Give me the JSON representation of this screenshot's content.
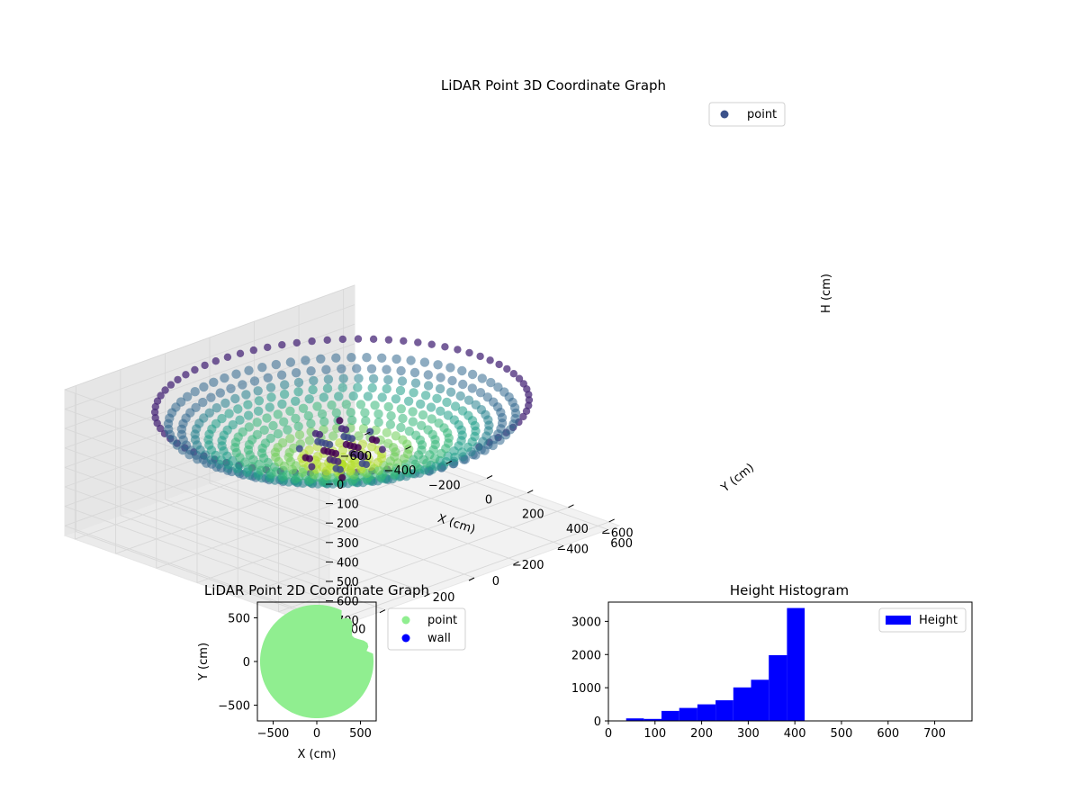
{
  "chart_data": [
    {
      "type": "scatter3d",
      "title": "LiDAR Point 3D Coordinate Graph",
      "xlabel": "X (cm)",
      "ylabel": "Y (cm)",
      "zlabel": "H (cm)",
      "x_ticks": [
        "−600",
        "−400",
        "−200",
        "0",
        "200",
        "400",
        "600"
      ],
      "y_ticks": [
        "−600",
        "−400",
        "−200",
        "0",
        "200",
        "400",
        "600"
      ],
      "z_ticks": [
        "0",
        "100",
        "200",
        "300",
        "400",
        "500",
        "600",
        "700"
      ],
      "xlim": [
        -650,
        650
      ],
      "ylim": [
        -650,
        650
      ],
      "zlim": [
        0,
        750
      ],
      "z_inverted": true,
      "colormap": "viridis",
      "grid": true,
      "legend": [
        {
          "label": "point",
          "color": "#3b528b"
        }
      ],
      "legend_position": "top-right",
      "description_shape": "bowl-shaped point cloud; rim near H≈100–200 cm, floor near H≈400 cm"
    },
    {
      "type": "scatter",
      "title": "LiDAR Point 2D Coordinate Graph",
      "xlabel": "X (cm)",
      "ylabel": "Y (cm)",
      "x_ticks": [
        "−500",
        "0",
        "500"
      ],
      "y_ticks": [
        "500",
        "0",
        "−500"
      ],
      "xlim": [
        -680,
        680
      ],
      "ylim": [
        -680,
        680
      ],
      "legend": [
        {
          "label": "point",
          "color": "#90ee90"
        },
        {
          "label": "wall",
          "color": "#0000ff"
        }
      ],
      "legend_position": "outside-right",
      "series": [
        {
          "name": "point",
          "shape": "filled disc, radius ≈ 630 cm, notched at right edge"
        }
      ]
    },
    {
      "type": "bar",
      "title": "Height Histogram",
      "xlabel": "",
      "ylabel": "",
      "x_ticks": [
        "0",
        "100",
        "200",
        "300",
        "400",
        "500",
        "600",
        "700"
      ],
      "y_ticks": [
        "0",
        "1000",
        "2000",
        "3000"
      ],
      "xlim": [
        0,
        780
      ],
      "ylim": [
        0,
        3580
      ],
      "bar_color": "#0000ff",
      "legend": [
        {
          "label": "Height",
          "color": "#0000ff"
        }
      ],
      "legend_position": "top-right",
      "bins": [
        {
          "x0": 38,
          "x1": 76,
          "count": 75
        },
        {
          "x0": 76,
          "x1": 114,
          "count": 60
        },
        {
          "x0": 114,
          "x1": 152,
          "count": 300
        },
        {
          "x0": 152,
          "x1": 191,
          "count": 390
        },
        {
          "x0": 191,
          "x1": 230,
          "count": 500
        },
        {
          "x0": 230,
          "x1": 268,
          "count": 620
        },
        {
          "x0": 268,
          "x1": 306,
          "count": 1010
        },
        {
          "x0": 306,
          "x1": 344,
          "count": 1240
        },
        {
          "x0": 344,
          "x1": 383,
          "count": 1980
        },
        {
          "x0": 383,
          "x1": 421,
          "count": 3400
        }
      ]
    }
  ]
}
